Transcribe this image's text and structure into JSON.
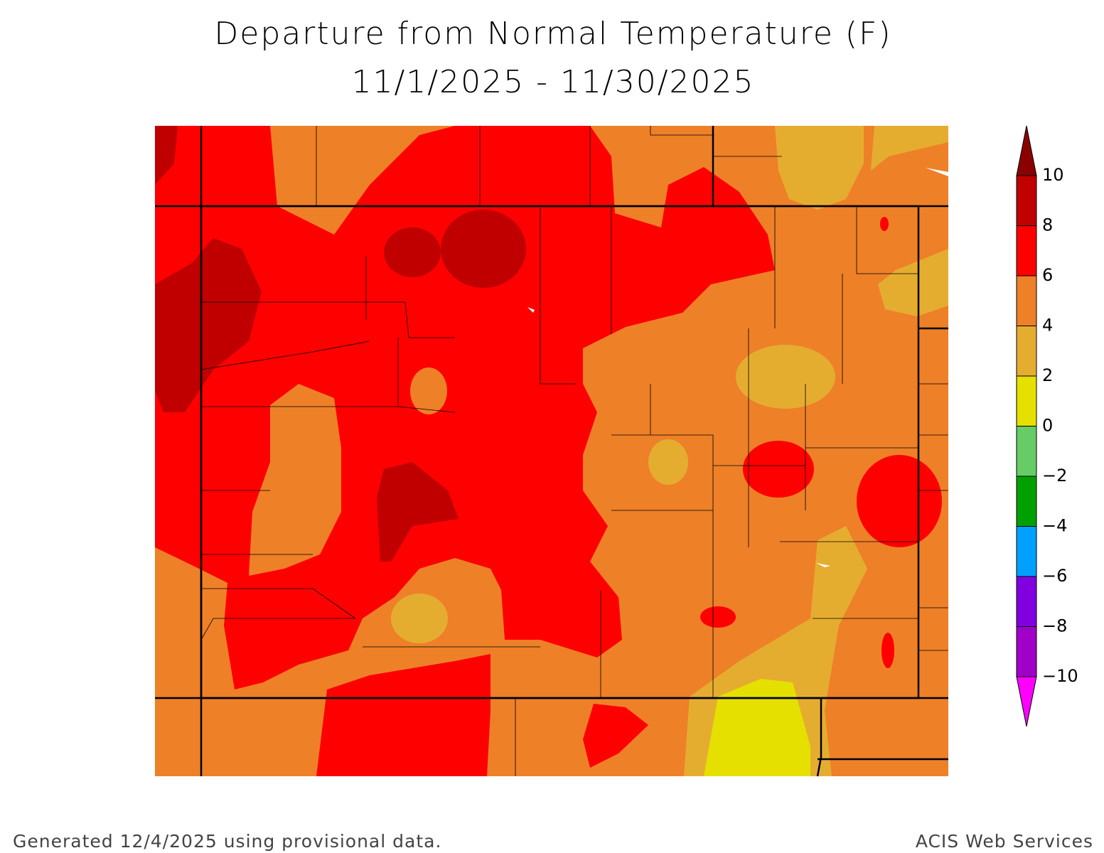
{
  "header": {
    "title": "Departure from Normal Temperature (F)",
    "subtitle": "11/1/2025 - 11/30/2025"
  },
  "legend": {
    "labels": [
      "10",
      "8",
      "6",
      "4",
      "2",
      "0",
      "−2",
      "−4",
      "−6",
      "−8",
      "−10"
    ],
    "colors": [
      "#8b0000",
      "#c00000",
      "#ff0000",
      "#ee8028",
      "#e5ad30",
      "#e5e000",
      "#66cc66",
      "#00a000",
      "#00a0ff",
      "#8000e0",
      "#a000c8",
      "#ff00ff"
    ]
  },
  "footer": {
    "left": "Generated 12/4/2025 using provisional data.",
    "right": "ACIS Web Services"
  }
}
